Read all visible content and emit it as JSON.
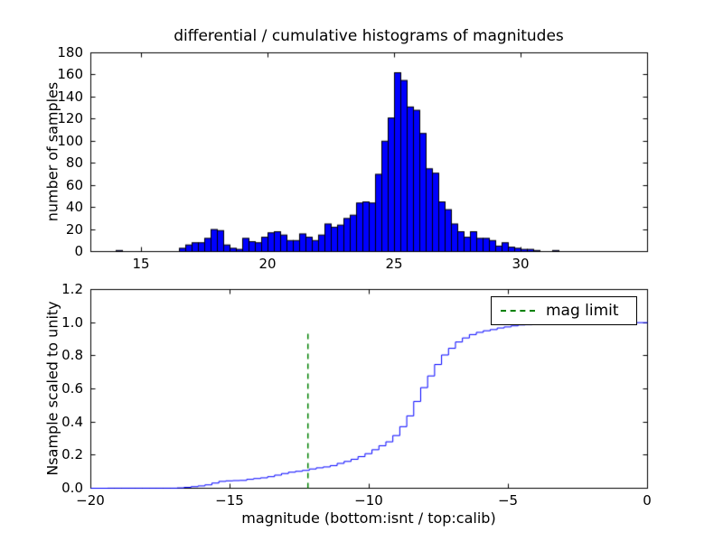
{
  "figure": {
    "title": "differential / cumulative histograms of magnitudes",
    "background": "#ffffff"
  },
  "chart_data": [
    {
      "type": "bar",
      "role": "differential-histogram",
      "ylabel": "number of samples",
      "xlim": [
        13,
        35
      ],
      "ylim": [
        0,
        180
      ],
      "xticks": {
        "values": [
          15,
          20,
          25,
          30
        ],
        "labels": [
          "15",
          "20",
          "25",
          "30"
        ]
      },
      "yticks": {
        "values": [
          0,
          20,
          40,
          60,
          80,
          100,
          120,
          140,
          160,
          180
        ],
        "labels": [
          "0",
          "20",
          "40",
          "60",
          "80",
          "100",
          "120",
          "140",
          "160",
          "180"
        ]
      },
      "bins": {
        "start": 14.0,
        "width": 0.25
      },
      "values": [
        1,
        0,
        0,
        0,
        0,
        0,
        0,
        0,
        0,
        0,
        3,
        6,
        8,
        8,
        12,
        20,
        19,
        6,
        3,
        2,
        12,
        9,
        8,
        13,
        17,
        18,
        15,
        10,
        10,
        16,
        13,
        10,
        15,
        25,
        22,
        24,
        30,
        33,
        44,
        45,
        44,
        70,
        100,
        121,
        162,
        155,
        131,
        128,
        107,
        75,
        71,
        45,
        38,
        25,
        18,
        13,
        18,
        12,
        12,
        10,
        5,
        8,
        4,
        3,
        2,
        2,
        1,
        0,
        0,
        1
      ],
      "bar_color": "#0000ff",
      "bar_edge_color": "#000000",
      "grid": false
    },
    {
      "type": "step-line",
      "role": "cumulative-histogram",
      "xlabel": "magnitude (bottom:isnt / top:calib)",
      "ylabel": "Nsample scaled to unity",
      "xlim": [
        -20,
        0
      ],
      "ylim": [
        0,
        1.2
      ],
      "xticks": {
        "values": [
          -20,
          -15,
          -10,
          -5,
          0
        ],
        "labels": [
          "−20",
          "−15",
          "−10",
          "−5",
          "0"
        ]
      },
      "yticks": {
        "values": [
          0,
          0.2,
          0.4,
          0.6,
          0.8,
          1.0,
          1.2
        ],
        "labels": [
          "0.0",
          "0.2",
          "0.4",
          "0.6",
          "0.8",
          "1.0",
          "1.2"
        ]
      },
      "derived_from": "cumulative sum of top histogram values scaled to unity",
      "x_offset_from_top": -33.4,
      "line_color": "#0000ff",
      "mag_limit": {
        "x": -12.2,
        "y_top": 0.95,
        "color": "#008000",
        "dash": [
          6,
          5
        ],
        "label": "mag limit"
      },
      "legend_label": "mag limit",
      "legend_position": "upper right",
      "grid": false
    }
  ]
}
